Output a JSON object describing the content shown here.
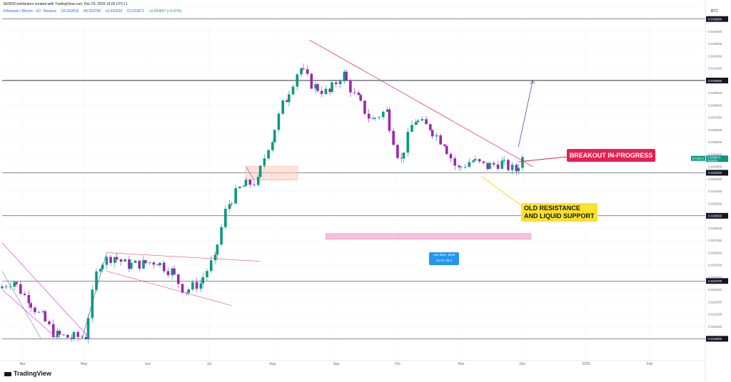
{
  "header": {
    "credit": "WZRDContributors created with TradingView.com, Dec 03, 2025 19:05 UTC+1",
    "symbol": "Ethereum / Bitcoin · 1D · Binance",
    "open": "O0.032815",
    "high": "H0.033700",
    "low": "L0.032620",
    "close": "C0.033671",
    "change": "+0.000857 (+2.61%)"
  },
  "brand": {
    "name": "TradingView"
  },
  "colors": {
    "up": "#089981",
    "down": "#9c27b0",
    "trendline": "#e91e63",
    "callout_red": "#e91e50",
    "callout_yellow": "#fde12d",
    "arrow": "#3f51b5",
    "measure": "#2196f3",
    "zone_pink": "#f48fb1",
    "zone_orange": "#ffccbc"
  },
  "callouts": {
    "breakout": "BREAKOUT IN-PROGRESS",
    "support_line1": "OLD RESISTANCE",
    "support_line2": "AND LIQUID SUPPORT"
  },
  "measure": {
    "line1": "101 bars, 101d",
    "line2": "Vol 87.35 K"
  },
  "chart_data": {
    "type": "line",
    "title": "Ethereum / Bitcoin · 1D · Binance",
    "currency": "BTC",
    "x": [
      "2025-03-22",
      "2025-03-29",
      "2025-04-05",
      "2025-04-12",
      "2025-04-19",
      "2025-04-26",
      "2025-05-03",
      "2025-05-10",
      "2025-05-17",
      "2025-05-24",
      "2025-05-31",
      "2025-06-07",
      "2025-06-14",
      "2025-06-21",
      "2025-06-28",
      "2025-07-05",
      "2025-07-12",
      "2025-07-19",
      "2025-07-26",
      "2025-08-02",
      "2025-08-09",
      "2025-08-16",
      "2025-08-23",
      "2025-08-30",
      "2025-09-06",
      "2025-09-13",
      "2025-09-20",
      "2025-09-27",
      "2025-10-04",
      "2025-10-11",
      "2025-10-18",
      "2025-10-25",
      "2025-11-01",
      "2025-11-08",
      "2025-11-15",
      "2025-11-22",
      "2025-11-29",
      "2025-12-03"
    ],
    "series": [
      {
        "values": [
          0.0231,
          0.0237,
          0.0223,
          0.0208,
          0.0193,
          0.0191,
          0.0192,
          0.0251,
          0.0257,
          0.025,
          0.0251,
          0.0253,
          0.0245,
          0.0229,
          0.0235,
          0.0254,
          0.03,
          0.0314,
          0.0318,
          0.0352,
          0.0385,
          0.041,
          0.0395,
          0.039,
          0.0405,
          0.0385,
          0.0368,
          0.0375,
          0.0335,
          0.0368,
          0.0362,
          0.035,
          0.0328,
          0.0335,
          0.033,
          0.0333,
          0.0327,
          0.0337
        ]
      }
    ],
    "ylim": [
      0.019,
      0.046
    ],
    "y_ticks": [
      "0.019000",
      "0.020000",
      "0.021000",
      "0.022000",
      "0.023000",
      "0.023700",
      "0.024000",
      "0.025000",
      "0.026000",
      "0.027000",
      "0.028000",
      "0.029000",
      "0.030000",
      "0.031000",
      "0.032000",
      "0.032500",
      "0.033000",
      "0.034000",
      "0.035000",
      "0.036000",
      "0.037000",
      "0.038000",
      "0.039000",
      "0.040000",
      "0.041000",
      "0.042000",
      "0.043000",
      "0.044000",
      "0.045000",
      "0.046000"
    ],
    "x_ticks": [
      "Apr",
      "May",
      "Jun",
      "Jul",
      "Aug",
      "Sep",
      "Oct",
      "Nov",
      "Dec",
      "2026",
      "Feb"
    ],
    "horizontal_levels": [
      0.019,
      0.0237,
      0.029,
      0.0325,
      0.04,
      0.045
    ],
    "price_tag": {
      "label": "ETHBTC",
      "value": "0.033671",
      "sub": "04:54:55"
    },
    "grid": true
  }
}
